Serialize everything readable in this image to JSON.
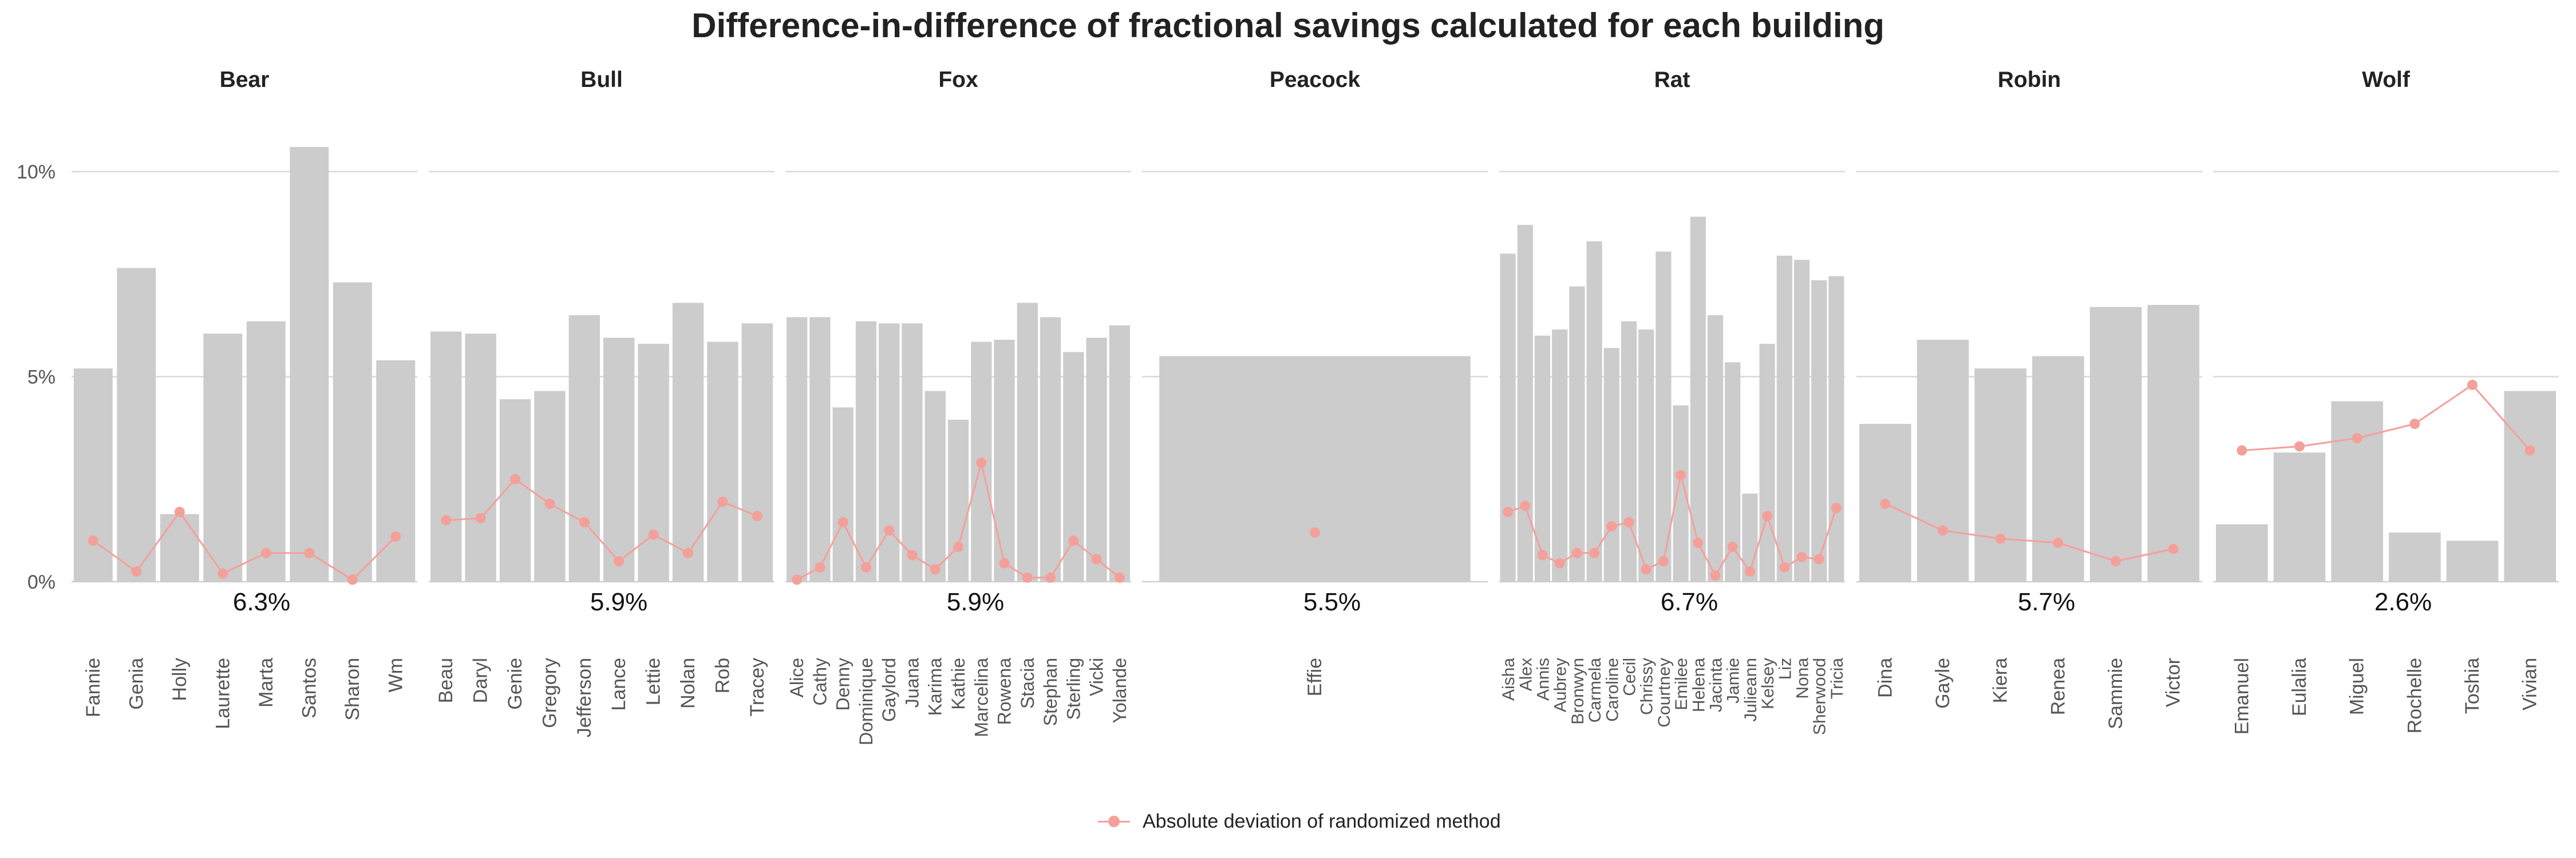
{
  "chart_data": {
    "type": "bar",
    "title": "Difference-in-difference of fractional savings calculated for each building",
    "xlabel": "",
    "ylabel": "",
    "ylim": [
      0,
      11.5
    ],
    "yticks": [
      {
        "value": 0,
        "label": "0%"
      },
      {
        "value": 5,
        "label": "5%"
      },
      {
        "value": 10,
        "label": "10%"
      }
    ],
    "grid": true,
    "legend_position": "bottom",
    "bar_color": "#cccccc",
    "line_color": "#f4a09a",
    "line_series_name": "Absolute deviation of randomized method",
    "panels": [
      {
        "name": "Bear",
        "summary": "6.3%",
        "categories": [
          "Fannie",
          "Genia",
          "Holly",
          "Laurette",
          "Marta",
          "Santos",
          "Sharon",
          "Wm"
        ],
        "values": [
          5.2,
          7.65,
          1.65,
          6.05,
          6.35,
          10.6,
          7.3,
          5.4
        ],
        "deviation": [
          1.0,
          0.25,
          1.7,
          0.2,
          0.7,
          0.7,
          0.05,
          1.1
        ]
      },
      {
        "name": "Bull",
        "summary": "5.9%",
        "categories": [
          "Beau",
          "Daryl",
          "Genie",
          "Gregory",
          "Jefferson",
          "Lance",
          "Lettie",
          "Nolan",
          "Rob",
          "Tracey"
        ],
        "values": [
          6.1,
          6.05,
          4.45,
          4.65,
          6.5,
          5.95,
          5.8,
          6.8,
          5.85,
          6.3
        ],
        "deviation": [
          1.5,
          1.55,
          2.5,
          1.9,
          1.45,
          0.5,
          1.15,
          0.7,
          1.95,
          1.6
        ]
      },
      {
        "name": "Fox",
        "summary": "5.9%",
        "categories": [
          "Alice",
          "Cathy",
          "Denny",
          "Dominique",
          "Gaylord",
          "Juana",
          "Karima",
          "Kathie",
          "Marcelina",
          "Rowena",
          "Stacia",
          "Stephan",
          "Sterling",
          "Vicki",
          "Yolande"
        ],
        "values": [
          6.45,
          6.45,
          4.25,
          6.35,
          6.3,
          6.3,
          4.65,
          3.95,
          5.85,
          5.9,
          6.8,
          6.45,
          5.6,
          5.95,
          6.25
        ],
        "deviation": [
          0.05,
          0.35,
          1.45,
          0.35,
          1.25,
          0.65,
          0.3,
          0.85,
          2.9,
          0.45,
          0.1,
          0.1,
          1.0,
          0.55,
          0.1
        ]
      },
      {
        "name": "Peacock",
        "summary": "5.5%",
        "categories": [
          "Effie"
        ],
        "values": [
          5.5
        ],
        "deviation": [
          1.2
        ]
      },
      {
        "name": "Rat",
        "summary": "6.7%",
        "categories": [
          "Aisha",
          "Alex",
          "Annis",
          "Aubrey",
          "Bronwyn",
          "Carmela",
          "Caroline",
          "Cecil",
          "Chrissy",
          "Courtney",
          "Emilee",
          "Helena",
          "Jacinta",
          "Jamie",
          "Julieann",
          "Kelsey",
          "Liz",
          "Nona",
          "Sherwood",
          "Tricia"
        ],
        "values": [
          8.0,
          8.7,
          6.0,
          6.15,
          7.2,
          8.3,
          5.7,
          6.35,
          6.15,
          8.05,
          4.3,
          8.9,
          6.5,
          5.35,
          2.15,
          5.8,
          7.95,
          7.85,
          7.35,
          7.45
        ],
        "deviation": [
          1.7,
          1.85,
          0.65,
          0.45,
          0.7,
          0.7,
          1.35,
          1.45,
          0.3,
          0.5,
          2.6,
          0.95,
          0.15,
          0.85,
          0.25,
          1.6,
          0.35,
          0.6,
          0.55,
          1.8
        ]
      },
      {
        "name": "Robin",
        "summary": "5.7%",
        "categories": [
          "Dina",
          "Gayle",
          "Kiera",
          "Renea",
          "Sammie",
          "Victor"
        ],
        "values": [
          3.85,
          5.9,
          5.2,
          5.5,
          6.7,
          6.75
        ],
        "deviation": [
          1.9,
          1.25,
          1.05,
          0.95,
          0.5,
          0.8
        ]
      },
      {
        "name": "Wolf",
        "summary": "2.6%",
        "categories": [
          "Emanuel",
          "Eulalia",
          "Miguel",
          "Rochelle",
          "Toshia",
          "Vivian"
        ],
        "values": [
          1.4,
          3.15,
          4.4,
          1.2,
          1.0,
          4.65
        ],
        "deviation": [
          3.2,
          3.3,
          3.5,
          3.85,
          4.8,
          3.2
        ]
      }
    ]
  }
}
